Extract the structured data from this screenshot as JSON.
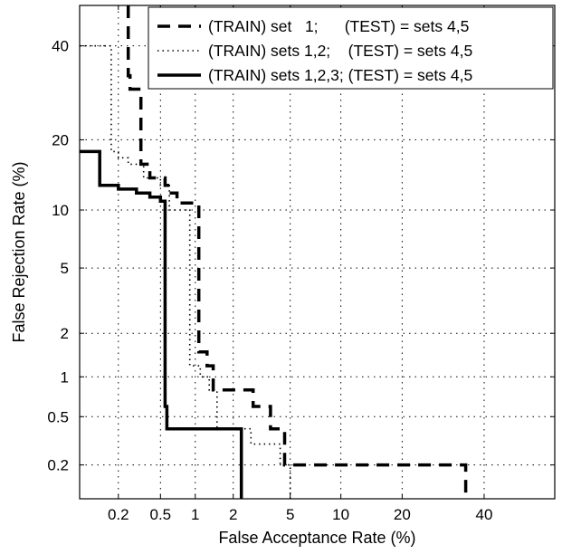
{
  "chart_data": {
    "type": "line",
    "xlabel": "False Acceptance Rate (%)",
    "ylabel": "False Rejection Rate (%)",
    "x_scale": "normal-deviate",
    "y_scale": "normal-deviate",
    "xlim": [
      0.08,
      60
    ],
    "ylim": [
      0.1,
      50
    ],
    "x_ticks": [
      0.2,
      0.5,
      1,
      2,
      5,
      10,
      20,
      40
    ],
    "x_tick_labels": [
      "0.2",
      "0.5",
      "1",
      "2",
      "5",
      "10",
      "20",
      "40"
    ],
    "y_ticks": [
      0.2,
      0.5,
      1,
      2,
      5,
      10,
      20,
      40
    ],
    "y_tick_labels": [
      "0.2",
      "0.5",
      "1",
      "2",
      "5",
      "10",
      "20",
      "40"
    ],
    "grid": true,
    "legend_position": "top-right",
    "series": [
      {
        "name": "(TRAIN) set   1;      (TEST) = sets 4,5",
        "style": "dashed",
        "color": "#000000",
        "x": [
          0.25,
          0.25,
          0.26,
          0.26,
          0.33,
          0.33,
          0.4,
          0.4,
          0.55,
          0.55,
          0.6,
          0.6,
          0.7,
          0.7,
          1.07,
          1.07,
          1.25,
          1.25,
          1.4,
          1.4,
          1.7,
          1.7,
          2.8,
          2.8,
          3.7,
          3.7,
          4.6,
          4.6,
          35,
          35
        ],
        "y": [
          50,
          33,
          33,
          30,
          30,
          16,
          16,
          14,
          14,
          13,
          13,
          12,
          12,
          10.8,
          10.8,
          1.5,
          1.5,
          1.2,
          1.2,
          0.8,
          0.8,
          0.8,
          0.8,
          0.6,
          0.6,
          0.4,
          0.4,
          0.2,
          0.2,
          0.1
        ]
      },
      {
        "name": "(TRAIN) sets 1,2;    (TEST) = sets 4,5",
        "style": "dotted",
        "color": "#000000",
        "x": [
          0.08,
          0.17,
          0.17,
          0.2,
          0.2,
          0.25,
          0.25,
          0.35,
          0.35,
          0.5,
          0.5,
          0.6,
          0.6,
          0.9,
          0.9,
          1.1,
          1.1,
          1.3,
          1.3,
          1.5,
          1.5,
          2.7,
          2.7,
          4.3,
          4.3,
          5,
          5
        ],
        "y": [
          40,
          40,
          18,
          18,
          17,
          17,
          16,
          16,
          14,
          14,
          13,
          13,
          10,
          10,
          1.2,
          1.2,
          1.0,
          1.0,
          0.8,
          0.8,
          0.4,
          0.4,
          0.3,
          0.3,
          0.2,
          0.2,
          0.1
        ]
      },
      {
        "name": "(TRAIN) sets 1,2,3; (TEST) = sets 4,5",
        "style": "solid",
        "color": "#000000",
        "x": [
          0.08,
          0.13,
          0.13,
          0.2,
          0.2,
          0.3,
          0.3,
          0.4,
          0.4,
          0.5,
          0.5,
          0.55,
          0.55,
          0.57,
          0.57,
          0.65,
          0.65,
          2.3,
          2.3
        ],
        "y": [
          18,
          18,
          13,
          13,
          12.5,
          12.5,
          12,
          12,
          11.5,
          11.5,
          11,
          11,
          0.6,
          0.6,
          0.4,
          0.4,
          0.4,
          0.4,
          0.1
        ]
      }
    ]
  }
}
